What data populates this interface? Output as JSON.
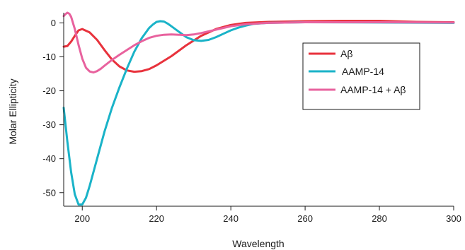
{
  "chart_data": {
    "type": "line",
    "title": "",
    "xlabel": "Wavelength",
    "ylabel": "Molar Ellipticity",
    "xlim": [
      195,
      300
    ],
    "ylim": [
      -54,
      3
    ],
    "xticks": [
      200,
      220,
      240,
      260,
      280,
      300
    ],
    "yticks": [
      0,
      -10,
      -20,
      -30,
      -40,
      -50
    ],
    "grid": false,
    "legend": "top-right",
    "series": [
      {
        "name": "Aβ",
        "color": "#e8323c",
        "x": [
          195,
          196,
          197,
          198,
          199,
          200,
          202,
          204,
          206,
          208,
          210,
          212,
          214,
          216,
          218,
          220,
          224,
          228,
          232,
          236,
          240,
          244,
          250,
          260,
          270,
          280,
          290,
          300
        ],
        "y": [
          -7,
          -6.8,
          -5.5,
          -3.8,
          -2.2,
          -1.8,
          -2.8,
          -5,
          -8,
          -10.8,
          -12.8,
          -14,
          -14.4,
          -14.2,
          -13.6,
          -12.5,
          -9.8,
          -6.6,
          -3.8,
          -1.8,
          -0.6,
          0,
          0.3,
          0.5,
          0.6,
          0.6,
          0.3,
          0.2
        ]
      },
      {
        "name": "AAMP-14",
        "color": "#1ab3c8",
        "x": [
          195,
          196,
          197,
          198,
          199,
          200,
          201,
          202,
          204,
          206,
          208,
          210,
          212,
          214,
          216,
          218,
          219,
          220,
          221,
          222,
          223,
          224,
          226,
          228,
          230,
          232,
          234,
          236,
          238,
          240,
          242,
          244,
          246,
          250,
          260,
          280,
          300
        ],
        "y": [
          -25,
          -35,
          -44,
          -50.5,
          -53.5,
          -53.5,
          -51.5,
          -48,
          -40,
          -32,
          -25,
          -19,
          -13.5,
          -8.5,
          -4.5,
          -1.5,
          -0.5,
          0.3,
          0.5,
          0.4,
          -0.2,
          -1,
          -2.6,
          -4.2,
          -5.1,
          -5.3,
          -5,
          -4.2,
          -3.2,
          -2.2,
          -1.4,
          -0.8,
          -0.3,
          0,
          0.2,
          0.1,
          0
        ]
      },
      {
        "name": "AAMP-14 + Aβ",
        "color": "#e8629e",
        "x": [
          195,
          195.5,
          196,
          196.5,
          197,
          198,
          199,
          200,
          201,
          202,
          203,
          204,
          205,
          206,
          208,
          210,
          212,
          214,
          216,
          218,
          220,
          222,
          224,
          226,
          228,
          230,
          232,
          236,
          240,
          244,
          250,
          260,
          280,
          300
        ],
        "y": [
          2,
          2.6,
          3,
          2.7,
          1.8,
          -1.8,
          -6.5,
          -10.5,
          -13.2,
          -14.3,
          -14.6,
          -14.2,
          -13.5,
          -12.6,
          -10.9,
          -9.4,
          -8,
          -6.6,
          -5.4,
          -4.4,
          -3.8,
          -3.5,
          -3.4,
          -3.5,
          -3.6,
          -3.4,
          -3,
          -2,
          -1,
          -0.4,
          0,
          0.2,
          0.2,
          0.1
        ]
      }
    ]
  }
}
